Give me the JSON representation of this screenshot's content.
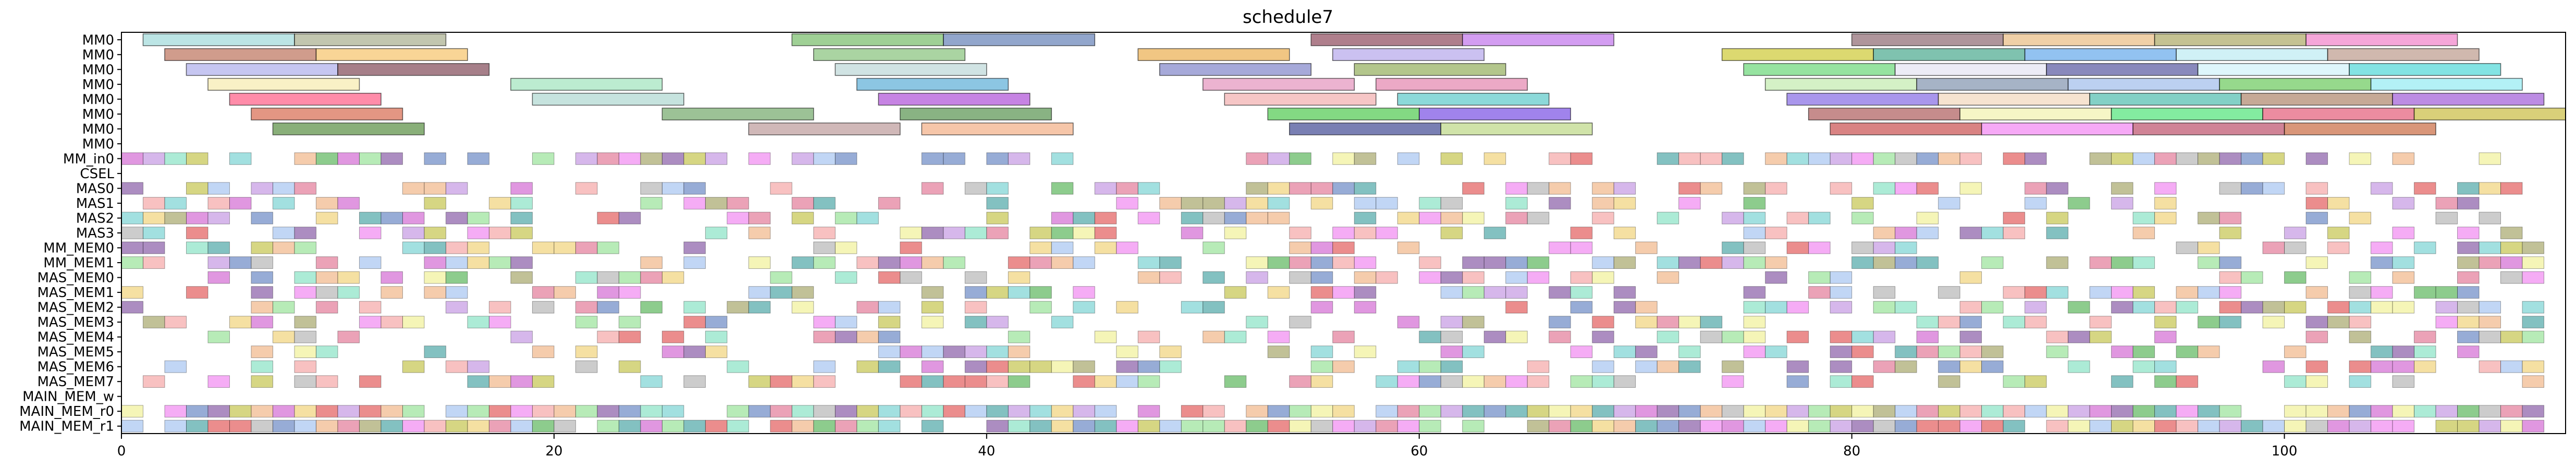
{
  "chart_data": {
    "type": "gantt",
    "title": "schedule7",
    "xlabel": "",
    "ylabel": "",
    "xlim": [
      0,
      113
    ],
    "x_ticks": [
      0,
      20,
      40,
      60,
      80,
      100
    ],
    "rows": [
      "MM0",
      "MM0",
      "MM0",
      "MM0",
      "MM0",
      "MM0",
      "MM0",
      "MM0",
      "MM_in0",
      "CSEL",
      "MAS0",
      "MAS1",
      "MAS2",
      "MAS3",
      "MM_MEM0",
      "MM_MEM1",
      "MAS_MEM0",
      "MAS_MEM1",
      "MAS_MEM2",
      "MAS_MEM3",
      "MAS_MEM4",
      "MAS_MEM5",
      "MAS_MEM6",
      "MAS_MEM7",
      "MAIN_MEM_w",
      "MAIN_MEM_r0",
      "MAIN_MEM_r1"
    ],
    "row_colors": {
      "MM0": [
        "#8fd3d3",
        "#9aa07a",
        "#72b864",
        "#4a6aaa",
        "#7a4f58",
        "#b65ce8",
        "#7a4f58",
        "#e6b06c",
        "#9e9a6a",
        "#ee6ac0",
        "#c0503a",
        "#f5b950",
        "#72b864",
        "#e8a030",
        "#2a9a5a",
        "#a080e8",
        "#b67a7a",
        "#e8c060",
        "#c4c010",
        "#a88070",
        "#6a5acf",
        "#7a2a40",
        "#5ab06a",
        "#88c0d8",
        "#80d0ff",
        "#c4b0a0",
        "#f0e060",
        "#f0d890",
        "#70e070",
        "#c040e0",
        "#8a8090",
        "#60a060",
        "#c05050",
        "#4a70c0",
        "#c46a30",
        "#e85050",
        "#d0d020",
        "#608040",
        "#b8b0b8",
        "#e0e0f8"
      ]
    },
    "bars": [
      {
        "row": 0,
        "start": 1,
        "end": 8,
        "color": "#8fd3d3"
      },
      {
        "row": 0,
        "start": 8,
        "end": 15,
        "color": "#9aa07a"
      },
      {
        "row": 0,
        "start": 31,
        "end": 38,
        "color": "#5fb04f"
      },
      {
        "row": 0,
        "start": 38,
        "end": 45,
        "color": "#4a6aaa"
      },
      {
        "row": 0,
        "start": 55,
        "end": 62,
        "color": "#7a2a40"
      },
      {
        "row": 0,
        "start": 62,
        "end": 69,
        "color": "#b65ce8"
      },
      {
        "row": 0,
        "start": 80,
        "end": 87,
        "color": "#7a4f58"
      },
      {
        "row": 0,
        "start": 87,
        "end": 94,
        "color": "#e6b06c"
      },
      {
        "row": 0,
        "start": 94,
        "end": 101,
        "color": "#9e9a4a"
      },
      {
        "row": 0,
        "start": 101,
        "end": 108,
        "color": "#ee6ac0"
      },
      {
        "row": 1,
        "start": 2,
        "end": 9,
        "color": "#b05a40"
      },
      {
        "row": 1,
        "start": 9,
        "end": 16,
        "color": "#f5b950"
      },
      {
        "row": 1,
        "start": 32,
        "end": 39,
        "color": "#72b864"
      },
      {
        "row": 1,
        "start": 47,
        "end": 54,
        "color": "#e8a030"
      },
      {
        "row": 1,
        "start": 56,
        "end": 63,
        "color": "#a898e8"
      },
      {
        "row": 1,
        "start": 74,
        "end": 81,
        "color": "#c4c010"
      },
      {
        "row": 1,
        "start": 81,
        "end": 88,
        "color": "#2a9a7a"
      },
      {
        "row": 1,
        "start": 88,
        "end": 95,
        "color": "#4a9ae8"
      },
      {
        "row": 1,
        "start": 95,
        "end": 102,
        "color": "#b0e8f0"
      },
      {
        "row": 1,
        "start": 102,
        "end": 109,
        "color": "#b08878"
      },
      {
        "row": 2,
        "start": 3,
        "end": 10,
        "color": "#a0a0e8"
      },
      {
        "row": 2,
        "start": 10,
        "end": 17,
        "color": "#6a2a3a"
      },
      {
        "row": 2,
        "start": 33,
        "end": 40,
        "color": "#b0d0d0"
      },
      {
        "row": 2,
        "start": 48,
        "end": 55,
        "color": "#6a70c0"
      },
      {
        "row": 2,
        "start": 57,
        "end": 64,
        "color": "#80a040"
      },
      {
        "row": 2,
        "start": 75,
        "end": 82,
        "color": "#50d060"
      },
      {
        "row": 2,
        "start": 82,
        "end": 89,
        "color": "#e0e0f0"
      },
      {
        "row": 2,
        "start": 89,
        "end": 96,
        "color": "#3a3a90"
      },
      {
        "row": 2,
        "start": 96,
        "end": 103,
        "color": "#c8f0f8"
      },
      {
        "row": 2,
        "start": 103,
        "end": 110,
        "color": "#30d0d0"
      },
      {
        "row": 3,
        "start": 4,
        "end": 11,
        "color": "#f5e8a0"
      },
      {
        "row": 3,
        "start": 18,
        "end": 25,
        "color": "#90e0b0"
      },
      {
        "row": 3,
        "start": 34,
        "end": 41,
        "color": "#40a0d0"
      },
      {
        "row": 3,
        "start": 50,
        "end": 57,
        "color": "#e080b0"
      },
      {
        "row": 3,
        "start": 58,
        "end": 65,
        "color": "#e070a0"
      },
      {
        "row": 3,
        "start": 76,
        "end": 83,
        "color": "#b8e8a0"
      },
      {
        "row": 3,
        "start": 83,
        "end": 90,
        "color": "#6a80a0"
      },
      {
        "row": 3,
        "start": 90,
        "end": 97,
        "color": "#90b0e8"
      },
      {
        "row": 3,
        "start": 97,
        "end": 104,
        "color": "#50c040"
      },
      {
        "row": 3,
        "start": 104,
        "end": 111,
        "color": "#80e8f0"
      },
      {
        "row": 4,
        "start": 5,
        "end": 12,
        "color": "#ff4070"
      },
      {
        "row": 4,
        "start": 19,
        "end": 26,
        "color": "#a0d0c8"
      },
      {
        "row": 4,
        "start": 35,
        "end": 42,
        "color": "#a030d0"
      },
      {
        "row": 4,
        "start": 51,
        "end": 58,
        "color": "#f0a0a0"
      },
      {
        "row": 4,
        "start": 59,
        "end": 66,
        "color": "#40c0c0"
      },
      {
        "row": 4,
        "start": 77,
        "end": 84,
        "color": "#7050e0"
      },
      {
        "row": 4,
        "start": 84,
        "end": 91,
        "color": "#f0d0b0"
      },
      {
        "row": 4,
        "start": 91,
        "end": 98,
        "color": "#30b0a0"
      },
      {
        "row": 4,
        "start": 98,
        "end": 105,
        "color": "#a07050"
      },
      {
        "row": 4,
        "start": 105,
        "end": 112,
        "color": "#9040d0"
      },
      {
        "row": 5,
        "start": 6,
        "end": 13,
        "color": "#d05030"
      },
      {
        "row": 5,
        "start": 25,
        "end": 32,
        "color": "#5a9a50"
      },
      {
        "row": 5,
        "start": 36,
        "end": 43,
        "color": "#3a8030"
      },
      {
        "row": 5,
        "start": 53,
        "end": 60,
        "color": "#30c030"
      },
      {
        "row": 5,
        "start": 60,
        "end": 67,
        "color": "#6030e0"
      },
      {
        "row": 5,
        "start": 78,
        "end": 85,
        "color": "#a04040"
      },
      {
        "row": 5,
        "start": 85,
        "end": 92,
        "color": "#f0f0a0"
      },
      {
        "row": 5,
        "start": 92,
        "end": 99,
        "color": "#30e060"
      },
      {
        "row": 5,
        "start": 99,
        "end": 106,
        "color": "#e04060"
      },
      {
        "row": 5,
        "start": 106,
        "end": 113,
        "color": "#c0b020"
      },
      {
        "row": 6,
        "start": 7,
        "end": 14,
        "color": "#3a7a20"
      },
      {
        "row": 6,
        "start": 29,
        "end": 36,
        "color": "#b08888"
      },
      {
        "row": 6,
        "start": 37,
        "end": 44,
        "color": "#f0a070"
      },
      {
        "row": 6,
        "start": 54,
        "end": 61,
        "color": "#202a80"
      },
      {
        "row": 6,
        "start": 61,
        "end": 68,
        "color": "#b0d070"
      },
      {
        "row": 6,
        "start": 79,
        "end": 86,
        "color": "#c03030"
      },
      {
        "row": 6,
        "start": 86,
        "end": 93,
        "color": "#f070f0"
      },
      {
        "row": 6,
        "start": 93,
        "end": 100,
        "color": "#b03050"
      },
      {
        "row": 6,
        "start": 100,
        "end": 107,
        "color": "#c05020"
      }
    ]
  }
}
